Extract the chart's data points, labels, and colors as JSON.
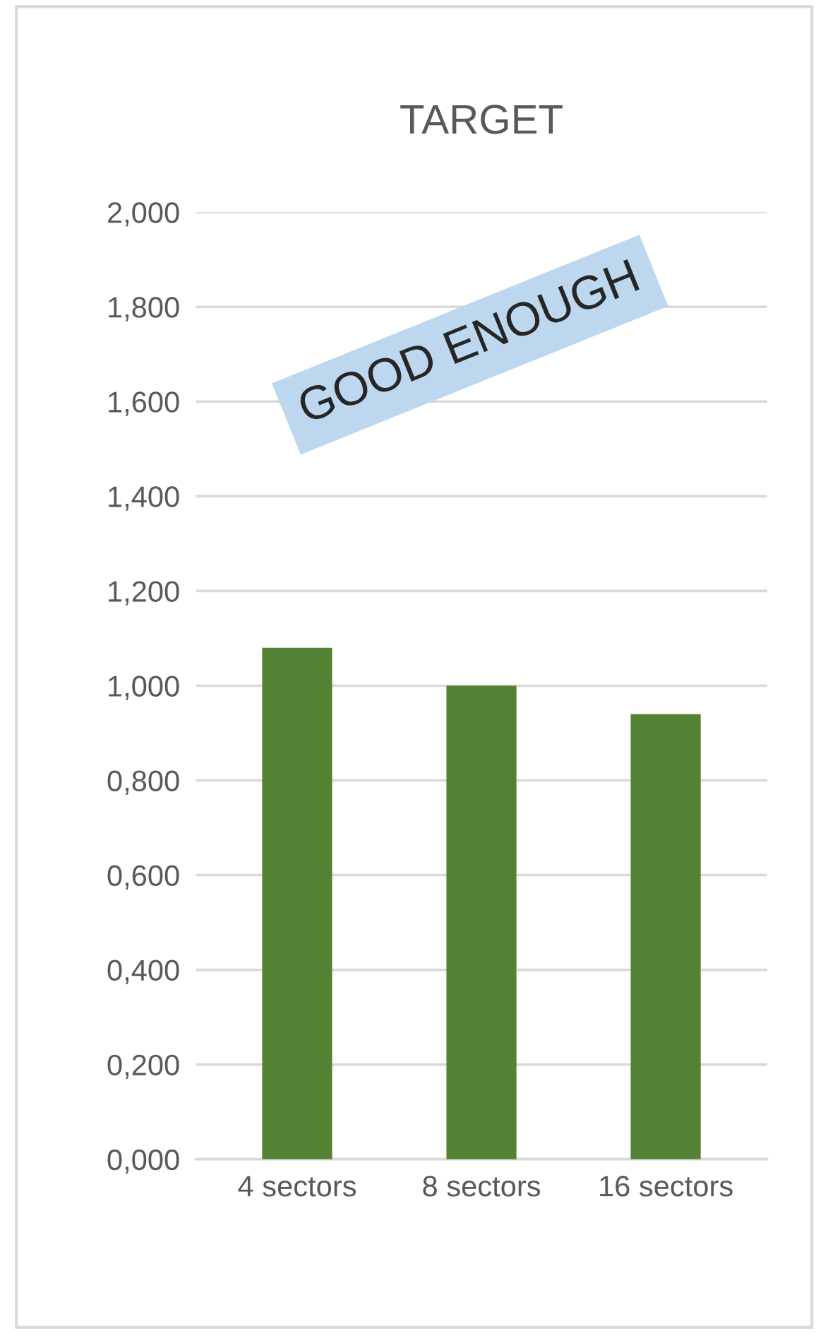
{
  "chart_data": {
    "type": "bar",
    "title": "TARGET",
    "categories": [
      "4 sectors",
      "8 sectors",
      "16 sectors"
    ],
    "values": [
      1.08,
      1.0,
      0.94
    ],
    "color": "#548235",
    "ylim": [
      0,
      2.0
    ],
    "yticks": [
      {
        "value": 0,
        "label": "0,000"
      },
      {
        "value": 0.2,
        "label": "0,200"
      },
      {
        "value": 0.4,
        "label": "0,400"
      },
      {
        "value": 0.6,
        "label": "0,600"
      },
      {
        "value": 0.8,
        "label": "0,800"
      },
      {
        "value": 1.0,
        "label": "1,000"
      },
      {
        "value": 1.2,
        "label": "1,200"
      },
      {
        "value": 1.4,
        "label": "1,400"
      },
      {
        "value": 1.6,
        "label": "1,600"
      },
      {
        "value": 1.8,
        "label": "1,800"
      },
      {
        "value": 2.0,
        "label": "2,000"
      }
    ],
    "grid": "y",
    "annotations": [
      "GOOD ENOUGH"
    ]
  }
}
